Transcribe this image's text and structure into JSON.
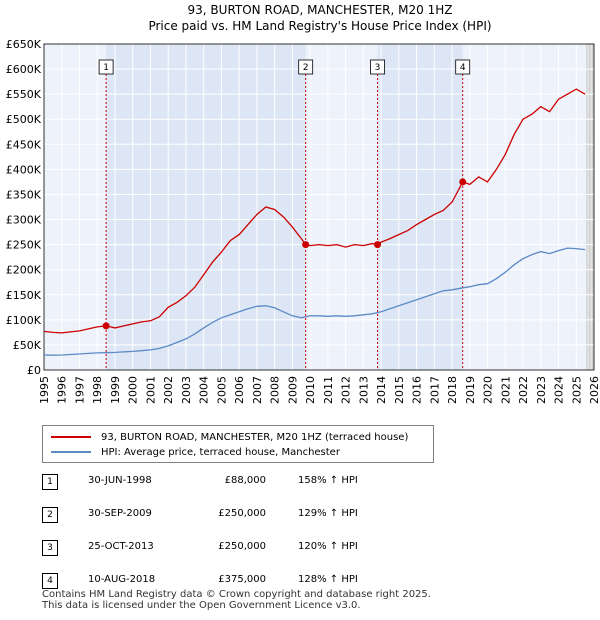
{
  "chart_data": {
    "type": "line",
    "title": "93, BURTON ROAD, MANCHESTER, M20 1HZ",
    "subtitle": "Price paid vs. HM Land Registry's House Price Index (HPI)",
    "xlim": [
      1995,
      2026
    ],
    "ylim": [
      0,
      650000
    ],
    "x_ticks": [
      "1995",
      "1996",
      "1997",
      "1998",
      "1999",
      "2000",
      "2001",
      "2002",
      "2003",
      "2004",
      "2005",
      "2006",
      "2007",
      "2008",
      "2009",
      "2010",
      "2011",
      "2012",
      "2013",
      "2014",
      "2015",
      "2016",
      "2017",
      "2018",
      "2019",
      "2020",
      "2021",
      "2022",
      "2023",
      "2024",
      "2025",
      "2026"
    ],
    "y_ticks": [
      {
        "value": 0,
        "label": "£0"
      },
      {
        "value": 50000,
        "label": "£50K"
      },
      {
        "value": 100000,
        "label": "£100K"
      },
      {
        "value": 150000,
        "label": "£150K"
      },
      {
        "value": 200000,
        "label": "£200K"
      },
      {
        "value": 250000,
        "label": "£250K"
      },
      {
        "value": 300000,
        "label": "£300K"
      },
      {
        "value": 350000,
        "label": "£350K"
      },
      {
        "value": 400000,
        "label": "£400K"
      },
      {
        "value": 450000,
        "label": "£450K"
      },
      {
        "value": 500000,
        "label": "£500K"
      },
      {
        "value": 550000,
        "label": "£550K"
      },
      {
        "value": 600000,
        "label": "£600K"
      },
      {
        "value": 650000,
        "label": "£650K"
      }
    ],
    "grid": true,
    "shaded_spans": [
      [
        1998.5,
        2009.75
      ],
      [
        2013.8,
        2018.6
      ]
    ],
    "forecast_start": 2025.6,
    "series": [
      {
        "name": "93, BURTON ROAD, MANCHESTER, M20 1HZ (terraced house)",
        "color": "#cc0000",
        "x": [
          1995.0,
          1995.5,
          1996.0,
          1996.5,
          1997.0,
          1997.5,
          1998.0,
          1998.5,
          1999.0,
          1999.5,
          2000.0,
          2000.5,
          2001.0,
          2001.5,
          2002.0,
          2002.5,
          2003.0,
          2003.5,
          2004.0,
          2004.5,
          2005.0,
          2005.5,
          2006.0,
          2006.5,
          2007.0,
          2007.5,
          2008.0,
          2008.5,
          2009.0,
          2009.5,
          2009.75,
          2010.0,
          2010.5,
          2011.0,
          2011.5,
          2012.0,
          2012.5,
          2013.0,
          2013.5,
          2013.8,
          2014.0,
          2014.5,
          2015.0,
          2015.5,
          2016.0,
          2016.5,
          2017.0,
          2017.5,
          2018.0,
          2018.3,
          2018.6,
          2019.0,
          2019.5,
          2020.0,
          2020.5,
          2021.0,
          2021.5,
          2022.0,
          2022.5,
          2023.0,
          2023.5,
          2024.0,
          2024.5,
          2025.0,
          2025.5
        ],
        "values": [
          77000,
          75000,
          74000,
          76000,
          78000,
          82000,
          86000,
          88000,
          84000,
          88000,
          92000,
          96000,
          98000,
          106000,
          125000,
          135000,
          148000,
          165000,
          190000,
          215000,
          235000,
          258000,
          270000,
          290000,
          310000,
          325000,
          320000,
          305000,
          285000,
          262000,
          250000,
          248000,
          250000,
          248000,
          250000,
          245000,
          250000,
          248000,
          252000,
          250000,
          255000,
          262000,
          270000,
          278000,
          290000,
          300000,
          310000,
          318000,
          335000,
          355000,
          375000,
          370000,
          385000,
          375000,
          400000,
          430000,
          470000,
          500000,
          510000,
          525000,
          515000,
          540000,
          550000,
          560000,
          550000
        ]
      },
      {
        "name": "HPI: Average price, terraced house, Manchester",
        "color": "#5b8ac6",
        "x": [
          1995.0,
          1995.5,
          1996.0,
          1996.5,
          1997.0,
          1997.5,
          1998.0,
          1998.5,
          1999.0,
          1999.5,
          2000.0,
          2000.5,
          2001.0,
          2001.5,
          2002.0,
          2002.5,
          2003.0,
          2003.5,
          2004.0,
          2004.5,
          2005.0,
          2005.5,
          2006.0,
          2006.5,
          2007.0,
          2007.5,
          2008.0,
          2008.5,
          2009.0,
          2009.5,
          2010.0,
          2010.5,
          2011.0,
          2011.5,
          2012.0,
          2012.5,
          2013.0,
          2013.5,
          2014.0,
          2014.5,
          2015.0,
          2015.5,
          2016.0,
          2016.5,
          2017.0,
          2017.5,
          2018.0,
          2018.5,
          2019.0,
          2019.5,
          2020.0,
          2020.5,
          2021.0,
          2021.5,
          2022.0,
          2022.5,
          2023.0,
          2023.5,
          2024.0,
          2024.5,
          2025.0,
          2025.5
        ],
        "values": [
          30000,
          29500,
          30000,
          31000,
          32000,
          33000,
          34000,
          34500,
          35000,
          36000,
          37000,
          38500,
          40000,
          43000,
          48000,
          55000,
          62000,
          72000,
          84000,
          95000,
          104000,
          110000,
          116000,
          122000,
          127000,
          128000,
          124000,
          116000,
          108000,
          104000,
          108000,
          108000,
          107000,
          108000,
          107000,
          108000,
          110000,
          112000,
          116000,
          122000,
          128000,
          134000,
          140000,
          146000,
          152000,
          158000,
          160000,
          163000,
          166000,
          170000,
          172000,
          182000,
          195000,
          210000,
          222000,
          230000,
          236000,
          232000,
          238000,
          243000,
          242000,
          240000
        ]
      }
    ],
    "sales": [
      {
        "n": "1",
        "x": 1998.5,
        "price": 88000
      },
      {
        "n": "2",
        "x": 2009.75,
        "price": 250000
      },
      {
        "n": "3",
        "x": 2013.8,
        "price": 250000
      },
      {
        "n": "4",
        "x": 2018.6,
        "price": 375000
      }
    ]
  },
  "legend": {
    "property_label": "93, BURTON ROAD, MANCHESTER, M20 1HZ (terraced house)",
    "hpi_label": "HPI: Average price, terraced house, Manchester"
  },
  "sales_table": [
    {
      "n": "1",
      "date": "30-JUN-1998",
      "price": "£88,000",
      "hpi": "158% ↑ HPI"
    },
    {
      "n": "2",
      "date": "30-SEP-2009",
      "price": "£250,000",
      "hpi": "129% ↑ HPI"
    },
    {
      "n": "3",
      "date": "25-OCT-2013",
      "price": "£250,000",
      "hpi": "120% ↑ HPI"
    },
    {
      "n": "4",
      "date": "10-AUG-2018",
      "price": "£375,000",
      "hpi": "128% ↑ HPI"
    }
  ],
  "footer": {
    "line1": "Contains HM Land Registry data © Crown copyright and database right 2025.",
    "line2": "This data is licensed under the Open Government Licence v3.0."
  },
  "colors": {
    "property": "#cc0000",
    "hpi": "#5b8ac6",
    "shade": "#dde6f5",
    "plot_bg": "#eef2fb",
    "grid": "#ffffff"
  }
}
